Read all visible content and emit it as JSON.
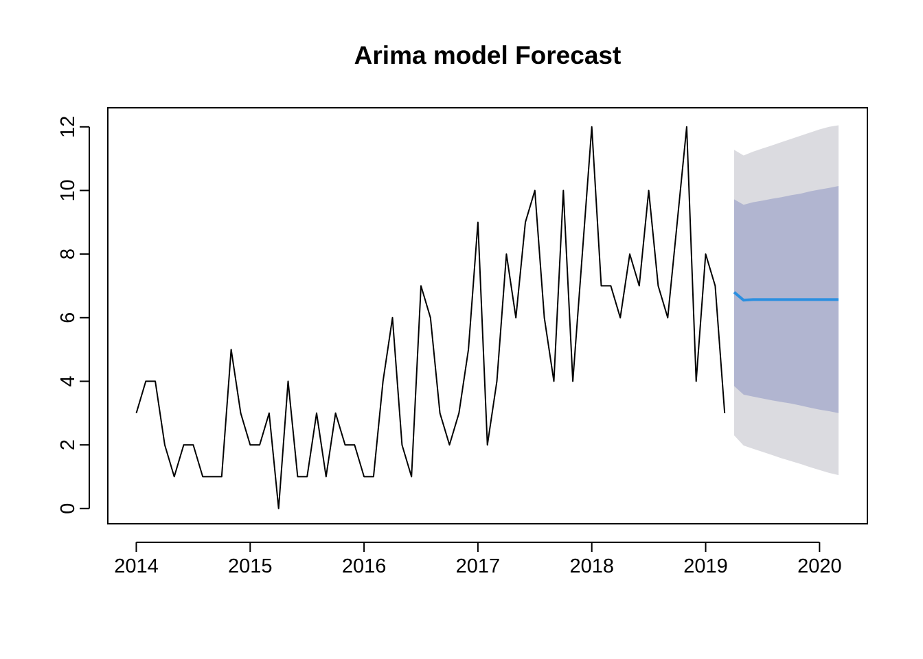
{
  "chart_data": {
    "type": "line",
    "title": "Arima model Forecast",
    "xlabel": "",
    "ylabel": "",
    "xlim": [
      2013.75,
      2020.42
    ],
    "ylim": [
      -0.48,
      12.6
    ],
    "x_ticks": [
      2014,
      2015,
      2016,
      2017,
      2018,
      2019,
      2020
    ],
    "x_tick_labels": [
      "2014",
      "2015",
      "2016",
      "2017",
      "2018",
      "2019",
      "2020"
    ],
    "y_ticks": [
      0,
      2,
      4,
      6,
      8,
      10,
      12
    ],
    "y_tick_labels": [
      "0",
      "2",
      "4",
      "6",
      "8",
      "10",
      "12"
    ],
    "grid": false,
    "legend": "none",
    "observed": {
      "start": 2014.0,
      "frequency": 12,
      "color": "#000000",
      "values": [
        3,
        4,
        4,
        2,
        1,
        2,
        2,
        1,
        1,
        1,
        5,
        3,
        2,
        2,
        3,
        0,
        4,
        1,
        1,
        3,
        1,
        3,
        2,
        2,
        1,
        1,
        4,
        6,
        2,
        1,
        7,
        6,
        3,
        2,
        3,
        5,
        9,
        2,
        4,
        8,
        6,
        9,
        10,
        6,
        4,
        10,
        4,
        8,
        12,
        7,
        7,
        6,
        8,
        7,
        10,
        7,
        6,
        9,
        12,
        4,
        8,
        7,
        3
      ]
    },
    "forecast": {
      "start": 2019.25,
      "frequency": 12,
      "color": "#2b8fe0",
      "mean": [
        6.8,
        6.55,
        6.57,
        6.57,
        6.57,
        6.57,
        6.57,
        6.57,
        6.57,
        6.57,
        6.57,
        6.57
      ],
      "lower80": [
        3.85,
        3.58,
        3.52,
        3.46,
        3.4,
        3.35,
        3.3,
        3.24,
        3.17,
        3.11,
        3.06,
        3.0
      ],
      "upper80": [
        9.72,
        9.55,
        9.63,
        9.68,
        9.74,
        9.79,
        9.85,
        9.9,
        9.97,
        10.03,
        10.08,
        10.14
      ],
      "lower95": [
        2.3,
        1.98,
        1.88,
        1.78,
        1.68,
        1.58,
        1.49,
        1.4,
        1.3,
        1.21,
        1.12,
        1.05
      ],
      "upper95": [
        11.28,
        11.1,
        11.22,
        11.32,
        11.42,
        11.52,
        11.62,
        11.72,
        11.82,
        11.92,
        12.0,
        12.05
      ],
      "band80_color": "#b1b5d0",
      "band95_color": "#dbdbe0"
    }
  }
}
